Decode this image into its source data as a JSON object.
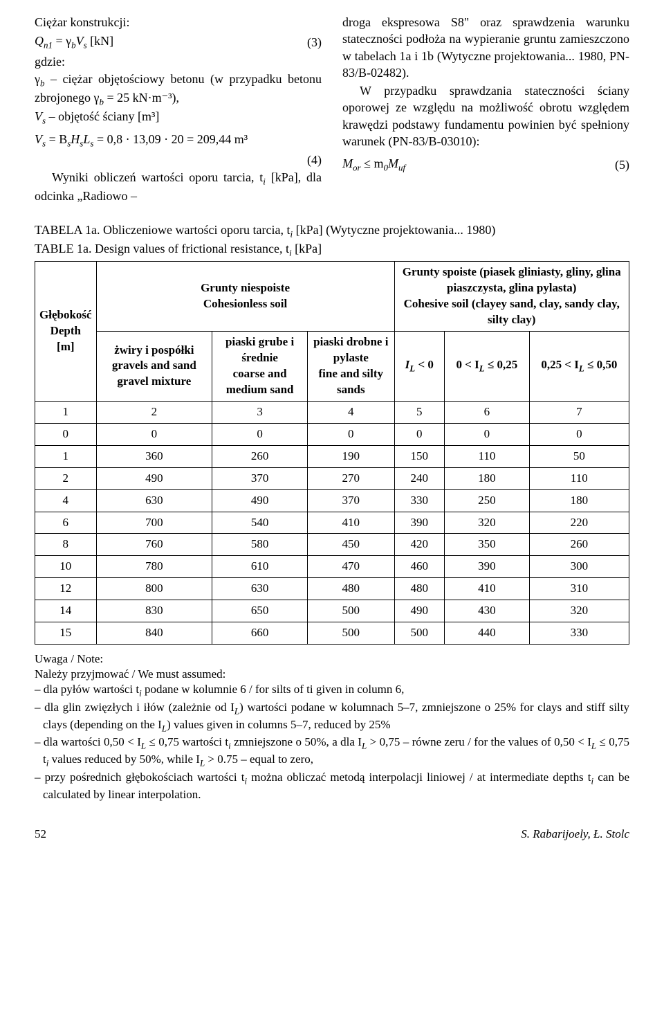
{
  "left_col": {
    "line1": "Ciężar konstrukcji:",
    "eq3": "Q",
    "eq3_sub": "n1",
    "eq3_mid": " = γ",
    "eq3_sub2": "b",
    "eq3_mid2": "V",
    "eq3_sub3": "s",
    "eq3_end": "  [kN]",
    "eq3_num": "(3)",
    "gdzie": "gdzie:",
    "gamma_line": "γ",
    "gamma_sub": "b",
    "gamma_rest": " – ciężar objętościowy betonu (w przypadku betonu zbrojonego γ",
    "gamma_sub2": "b",
    "gamma_rest2": " = 25 kN·m⁻³),",
    "vs_line": "V",
    "vs_sub": "s",
    "vs_rest": " – objętość ściany [m³]",
    "eq4": "V",
    "eq4_sub": "s",
    "eq4_mid": " = B",
    "eq4_sub2": "s",
    "eq4_mid2": "H",
    "eq4_sub3": "s",
    "eq4_mid3": "L",
    "eq4_sub4": "s",
    "eq4_end": " = 0,8 · 13,09 · 20 =  209,44 m³",
    "eq4_num": "(4)",
    "wyniki": "Wyniki obliczeń wartości oporu tarcia, t",
    "wyniki_sub": "i",
    "wyniki_rest": " [kPa], dla odcinka „Radiowo –"
  },
  "right_col": {
    "para1": "droga ekspresowa S8\" oraz sprawdzenia warunku stateczności podłoża na wypieranie gruntu zamieszczono w tabelach 1a i 1b (Wytyczne projektowania... 1980, PN-83/B-02482).",
    "para2": "W przypadku sprawdzania stateczności ściany oporowej ze względu na możliwość obrotu względem krawędzi podstawy fundamentu powinien być spełniony warunek (PN-83/B-03010):",
    "eq5": "M",
    "eq5_sub": "or",
    "eq5_mid": " ≤ m",
    "eq5_sub2": "0",
    "eq5_mid2": "M",
    "eq5_sub3": "uf",
    "eq5_num": "(5)"
  },
  "caption": {
    "line1a": "TABELA 1a. Obliczeniowe wartości oporu tarcia, t",
    "line1a_sub": "i",
    "line1a_rest": " [kPa] (Wytyczne projektowania... 1980)",
    "line1b": "TABLE 1a. Design values of frictional resistance, t",
    "line1b_sub": "i",
    "line1b_rest": " [kPa]"
  },
  "table": {
    "col0_header": "Głębokość\nDepth\n[m]",
    "niespoiste_header": "Grunty niespoiste\nCohesionless soil",
    "spoiste_header": "Grunty spoiste (piasek gliniasty, gliny, glina piaszczysta, glina pylasta)\nCohesive soil (clayey sand, clay, sandy clay, silty clay)",
    "h_zwiry": "żwiry i pospółki\ngravels and sand gravel mixture",
    "h_grube": "piaski grube i średnie\ncoarse and medium sand",
    "h_drobne": "piaski drobne i pylaste\nfine and silty sands",
    "h_il1": "I",
    "h_il1_sub": "L",
    "h_il1_rest": " < 0",
    "h_il2_pre": "0 < I",
    "h_il2_sub": "L",
    "h_il2_rest": " ≤ 0,25",
    "h_il3_pre": "0,25 < I",
    "h_il3_sub": "L",
    "h_il3_rest": " ≤ 0,50",
    "rows": [
      [
        "1",
        "2",
        "3",
        "4",
        "5",
        "6",
        "7"
      ],
      [
        "0",
        "0",
        "0",
        "0",
        "0",
        "0",
        "0"
      ],
      [
        "1",
        "360",
        "260",
        "190",
        "150",
        "110",
        "50"
      ],
      [
        "2",
        "490",
        "370",
        "270",
        "240",
        "180",
        "110"
      ],
      [
        "4",
        "630",
        "490",
        "370",
        "330",
        "250",
        "180"
      ],
      [
        "6",
        "700",
        "540",
        "410",
        "390",
        "320",
        "220"
      ],
      [
        "8",
        "760",
        "580",
        "450",
        "420",
        "350",
        "260"
      ],
      [
        "10",
        "780",
        "610",
        "470",
        "460",
        "390",
        "300"
      ],
      [
        "12",
        "800",
        "630",
        "480",
        "480",
        "410",
        "310"
      ],
      [
        "14",
        "830",
        "650",
        "500",
        "490",
        "430",
        "320"
      ],
      [
        "15",
        "840",
        "660",
        "500",
        "500",
        "440",
        "330"
      ]
    ]
  },
  "notes": {
    "title": "Uwaga / Note:",
    "intro": "Należy przyjmować / We must assumed:",
    "n1a": "– dla pyłów wartości t",
    "n1_sub": "i",
    "n1b": " podane w kolumnie 6 / for silts of ti given in column 6,",
    "n2a": "– dla glin zwięzłych i iłów (zależnie od I",
    "n2_sub": "L",
    "n2b": ") wartości podane w kolumnach 5–7, zmniejszone o 25% for clays and stiff silty clays (depending on the I",
    "n2_sub2": "L",
    "n2c": ") values given in columns 5–7, reduced by 25%",
    "n3a": "– dla wartości 0,50 < I",
    "n3_sub": "L",
    "n3b": " ≤ 0,75 wartości t",
    "n3_sub2": "i",
    "n3c": " zmniejszone o 50%, a dla I",
    "n3_sub3": "L",
    "n3d": " > 0,75 – równe zeru / for the values of 0,50 < I",
    "n3_sub4": "L",
    "n3e": " ≤ 0,75 t",
    "n3_sub5": "i",
    "n3f": " values reduced by 50%, while I",
    "n3_sub6": "L",
    "n3g": " > 0.75 – equal to zero,",
    "n4a": "– przy pośrednich głębokościach wartości t",
    "n4_sub": "i",
    "n4b": " można obliczać metodą interpolacji liniowej / at intermediate depths t",
    "n4_sub2": "i",
    "n4c": " can be calculated by linear interpolation."
  },
  "footer": {
    "page": "52",
    "authors": "S. Rabarijoely, Ł. Stolc"
  }
}
